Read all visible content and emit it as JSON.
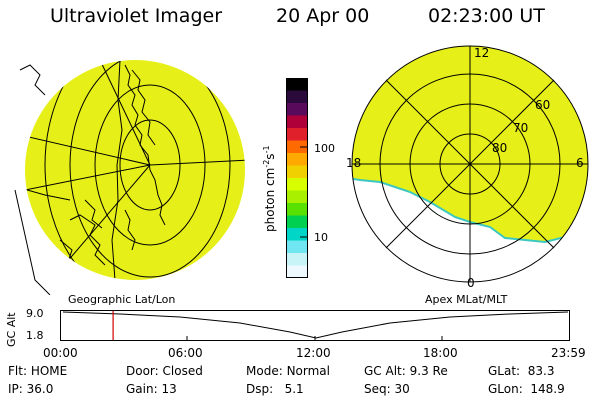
{
  "header": {
    "instrument": "Ultraviolet Imager",
    "date": "20 Apr 00",
    "time": "02:23:00 UT"
  },
  "left_panel": {
    "caption": "Geographic Lat/Lon"
  },
  "right_panel": {
    "caption": "Apex MLat/MLT",
    "mlt_labels": [
      "12",
      "18",
      "6",
      "0"
    ],
    "mlat_labels": [
      "60",
      "70",
      "80"
    ]
  },
  "colorbar": {
    "label": "photon cm",
    "label_exp1": "-2",
    "label_mid": "s",
    "label_exp2": "-1",
    "ticks": [
      "100",
      "10"
    ],
    "colors": [
      "#000000",
      "#2a0a3a",
      "#5a0a5a",
      "#b0003a",
      "#e0202a",
      "#ff6a00",
      "#ffa800",
      "#f0d000",
      "#d8ff00",
      "#a8f000",
      "#58e000",
      "#00d050",
      "#00d6c8",
      "#6fe6f0",
      "#c8f4f8",
      "#eef8ff"
    ]
  },
  "timeline": {
    "axis_label": "GC Alt",
    "y_ticks": [
      "9.0",
      "1.8"
    ],
    "x_ticks": [
      "00:00",
      "06:00",
      "12:00",
      "18:00",
      "23:59"
    ],
    "marker_time": "02:23"
  },
  "status": {
    "row1": [
      {
        "key": "Flt:",
        "value": "HOME"
      },
      {
        "key": "Door:",
        "value": "Closed"
      },
      {
        "key": "Mode:",
        "value": "Normal"
      },
      {
        "key": "GC Alt:",
        "value": "9.3 Re"
      },
      {
        "key": "GLat:",
        "value": "83.3"
      }
    ],
    "row2": [
      {
        "key": "IP:",
        "value": "36.0"
      },
      {
        "key": "Gain:",
        "value": "13"
      },
      {
        "key": "Dsp:",
        "value": "5.1"
      },
      {
        "key": "Seq:",
        "value": "30"
      },
      {
        "key": "GLon:",
        "value": "148.9"
      }
    ]
  },
  "colors": {
    "aurora_fill": "#e6f018",
    "edge": "#3cc8c0",
    "marker": "#d00000"
  }
}
